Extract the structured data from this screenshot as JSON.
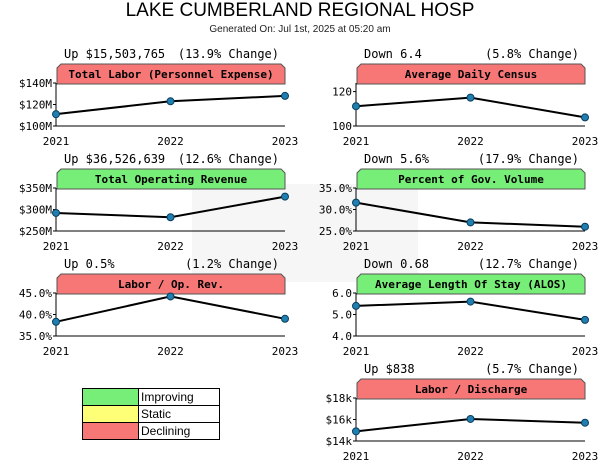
{
  "header": {
    "title": "LAKE CUMBERLAND REGIONAL HOSP",
    "generated": "Generated On: Jul 1st, 2025 at 05:20 am"
  },
  "colors": {
    "improving": "#77ee77",
    "static": "#ffff77",
    "declining": "#f77777",
    "marker": "#1f7fb0",
    "line": "#000000"
  },
  "legend": {
    "items": [
      {
        "label": "Improving",
        "color": "#77ee77"
      },
      {
        "label": "Static",
        "color": "#ffff77"
      },
      {
        "label": "Declining",
        "color": "#f77777"
      }
    ]
  },
  "chart_data": [
    {
      "type": "line",
      "title": "Total Labor (Personnel Expense)",
      "status": "declining",
      "summary": "Up $15,503,765",
      "change": "(13.9% Change)",
      "x": [
        "2021",
        "2022",
        "2023"
      ],
      "y": [
        111000000,
        123000000,
        128000000
      ],
      "ylim": [
        100000000,
        140000000
      ],
      "yticks": [
        100000000,
        120000000,
        140000000
      ],
      "ytick_labels": [
        "$100M",
        "$120M",
        "$140M"
      ]
    },
    {
      "type": "line",
      "title": "Average Daily Census",
      "status": "declining",
      "summary": "Down 6.4",
      "change": "(5.8% Change)",
      "x": [
        "2021",
        "2022",
        "2023"
      ],
      "y": [
        111.5,
        116.5,
        105
      ],
      "ylim": [
        100,
        125
      ],
      "yticks": [
        100,
        120
      ],
      "ytick_labels": [
        "100",
        "120"
      ]
    },
    {
      "type": "line",
      "title": "Total Operating Revenue",
      "status": "improving",
      "summary": "Up $36,526,639",
      "change": "(12.6% Change)",
      "x": [
        "2021",
        "2022",
        "2023"
      ],
      "y": [
        292000000,
        282000000,
        330000000
      ],
      "ylim": [
        250000000,
        350000000
      ],
      "yticks": [
        250000000,
        300000000,
        350000000
      ],
      "ytick_labels": [
        "$250M",
        "$300M",
        "$350M"
      ]
    },
    {
      "type": "line",
      "title": "Percent of Gov. Volume",
      "status": "improving",
      "summary": "Down 5.6%",
      "change": "(17.9% Change)",
      "x": [
        "2021",
        "2022",
        "2023"
      ],
      "y": [
        31.6,
        27.0,
        26.0
      ],
      "ylim": [
        25,
        35
      ],
      "yticks": [
        25,
        30,
        35
      ],
      "ytick_labels": [
        "25.0%",
        "30.0%",
        "35.0%"
      ]
    },
    {
      "type": "line",
      "title": "Labor / Op. Rev.",
      "status": "declining",
      "summary": "Up 0.5%",
      "change": "(1.2% Change)",
      "x": [
        "2021",
        "2022",
        "2023"
      ],
      "y": [
        38.3,
        44.2,
        39.0
      ],
      "ylim": [
        35,
        45
      ],
      "yticks": [
        35,
        40,
        45
      ],
      "ytick_labels": [
        "35.0%",
        "40.0%",
        "45.0%"
      ]
    },
    {
      "type": "line",
      "title": "Average Length Of Stay (ALOS)",
      "status": "improving",
      "summary": "Down 0.68",
      "change": "(12.7% Change)",
      "x": [
        "2021",
        "2022",
        "2023"
      ],
      "y": [
        5.4,
        5.6,
        4.75
      ],
      "ylim": [
        4,
        6
      ],
      "yticks": [
        4,
        5,
        6
      ],
      "ytick_labels": [
        "4.0",
        "5.0",
        "6.0"
      ]
    },
    {
      "type": "line",
      "title": "Labor / Discharge",
      "status": "declining",
      "summary": "Up $838",
      "change": "(5.7% Change)",
      "x": [
        "2021",
        "2022",
        "2023"
      ],
      "y": [
        14900,
        16050,
        15700
      ],
      "ylim": [
        14000,
        18000
      ],
      "yticks": [
        14000,
        16000,
        18000
      ],
      "ytick_labels": [
        "$14k",
        "$16k",
        "$18k"
      ]
    }
  ]
}
